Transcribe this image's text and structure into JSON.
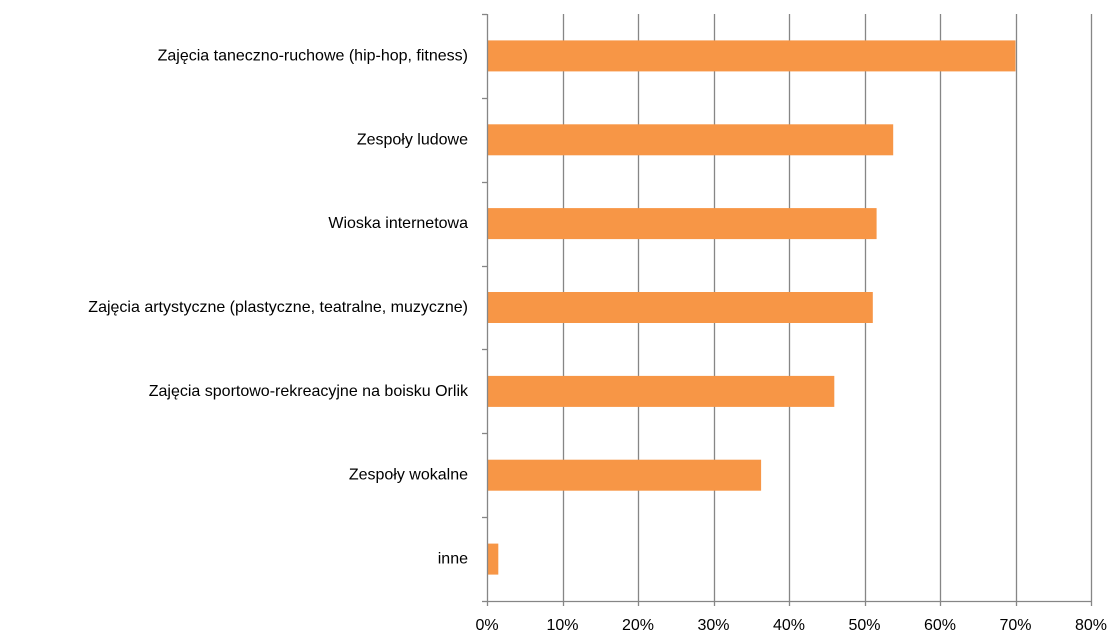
{
  "chart_data": {
    "type": "bar",
    "orientation": "horizontal",
    "title": "",
    "xlabel": "",
    "ylabel": "",
    "categories": [
      "Zajęcia taneczno-ruchowe (hip-hop, fitness)",
      "Zespoły ludowe",
      "Wioska internetowa",
      "Zajęcia artystyczne (plastyczne, teatralne, muzyczne)",
      "Zajęcia sportowo-rekreacyjne na boisku Orlik",
      "Zespoły wokalne",
      "inne"
    ],
    "values": [
      70,
      53.8,
      51.6,
      51.1,
      46,
      36.3,
      1.5
    ],
    "value_unit": "%",
    "xlim": [
      0,
      80
    ],
    "x_ticks": [
      0,
      10,
      20,
      30,
      40,
      50,
      60,
      70,
      80
    ],
    "x_tick_labels": [
      "0%",
      "10%",
      "20%",
      "30%",
      "40%",
      "50%",
      "60%",
      "70%",
      "80%"
    ],
    "grid": "vertical",
    "legend": "none",
    "colors": {
      "bar": "#F79646",
      "grid": "#868686",
      "axis": "#868686",
      "text": "#000000"
    }
  }
}
